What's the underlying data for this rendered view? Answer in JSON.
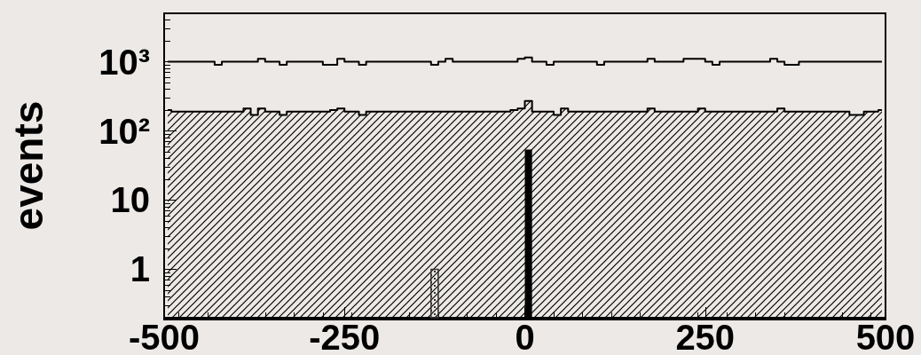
{
  "chart_data": {
    "type": "histogram",
    "ylabel": "events",
    "log": true,
    "grid": false,
    "xlim": [
      -500,
      500
    ],
    "xticks": [
      -500,
      -250,
      0,
      250,
      500
    ],
    "ylim": [
      0.2,
      5000
    ],
    "yticks": [
      1,
      10,
      {
        "value": 100,
        "label": "10²"
      },
      {
        "value": 1000,
        "label": "10³"
      }
    ],
    "series": [
      {
        "type": "step",
        "color": "#000000",
        "x": [
          -495,
          -485,
          -475,
          -465,
          -455,
          -445,
          -435,
          -425,
          -415,
          -405,
          -395,
          -385,
          -375,
          -365,
          -355,
          -345,
          -335,
          -325,
          -315,
          -305,
          -295,
          -285,
          -275,
          -265,
          -255,
          -245,
          -235,
          -225,
          -215,
          -205,
          -195,
          -185,
          -175,
          -165,
          -155,
          -145,
          -135,
          -125,
          -115,
          -105,
          -95,
          -85,
          -75,
          -65,
          -55,
          -45,
          -35,
          -25,
          -15,
          -5,
          5,
          15,
          25,
          35,
          45,
          55,
          65,
          75,
          85,
          95,
          105,
          115,
          125,
          135,
          145,
          155,
          165,
          175,
          185,
          195,
          205,
          215,
          225,
          235,
          245,
          255,
          265,
          275,
          285,
          295,
          305,
          315,
          325,
          335,
          345,
          355,
          365,
          375,
          385,
          395,
          405,
          415,
          425,
          435,
          445,
          455,
          465,
          475,
          485,
          495
        ],
        "values": [
          1000,
          1000,
          1000,
          1000,
          1000,
          1000,
          1000,
          900,
          1000,
          1000,
          1000,
          1000,
          1000,
          1100,
          1000,
          1000,
          900,
          1000,
          1000,
          1000,
          1000,
          1000,
          900,
          900,
          1100,
          1000,
          1000,
          900,
          1000,
          1000,
          1000,
          1000,
          1000,
          1000,
          1000,
          1000,
          1000,
          900,
          1000,
          1100,
          1000,
          1000,
          1000,
          1000,
          1000,
          1000,
          1000,
          1000,
          1000,
          1100,
          1150,
          1000,
          1000,
          900,
          1000,
          1000,
          1000,
          1000,
          1000,
          1000,
          900,
          1000,
          1000,
          1000,
          1000,
          1000,
          1000,
          1100,
          1000,
          1000,
          1000,
          1000,
          1100,
          1100,
          1100,
          1000,
          900,
          1000,
          1000,
          1000,
          1000,
          1000,
          1000,
          1000,
          1100,
          1000,
          900,
          900,
          1000,
          1000,
          1000,
          1000,
          1000,
          1000,
          1000,
          1000,
          1000,
          1000,
          1000,
          1000
        ]
      },
      {
        "type": "area",
        "color": "#000000",
        "x": [
          -495,
          -485,
          -475,
          -465,
          -455,
          -445,
          -435,
          -425,
          -415,
          -405,
          -395,
          -385,
          -375,
          -365,
          -355,
          -345,
          -335,
          -325,
          -315,
          -305,
          -295,
          -285,
          -275,
          -265,
          -255,
          -245,
          -235,
          -225,
          -215,
          -205,
          -195,
          -185,
          -175,
          -165,
          -155,
          -145,
          -135,
          -125,
          -115,
          -105,
          -95,
          -85,
          -75,
          -65,
          -55,
          -45,
          -35,
          -25,
          -15,
          -5,
          5,
          15,
          25,
          35,
          45,
          55,
          65,
          75,
          85,
          95,
          105,
          115,
          125,
          135,
          145,
          155,
          165,
          175,
          185,
          195,
          205,
          215,
          225,
          235,
          245,
          255,
          265,
          275,
          285,
          295,
          305,
          315,
          325,
          335,
          345,
          355,
          365,
          375,
          385,
          395,
          405,
          415,
          425,
          435,
          445,
          455,
          465,
          475,
          485,
          495
        ],
        "values": [
          200,
          190,
          190,
          190,
          190,
          190,
          190,
          190,
          190,
          190,
          190,
          210,
          170,
          210,
          190,
          190,
          170,
          190,
          190,
          190,
          190,
          190,
          190,
          200,
          210,
          190,
          190,
          170,
          190,
          190,
          190,
          190,
          190,
          190,
          190,
          190,
          190,
          190,
          190,
          190,
          190,
          190,
          190,
          190,
          190,
          190,
          190,
          190,
          200,
          210,
          270,
          190,
          190,
          190,
          170,
          210,
          190,
          190,
          190,
          190,
          190,
          190,
          190,
          190,
          190,
          190,
          190,
          210,
          190,
          190,
          190,
          190,
          190,
          190,
          210,
          190,
          190,
          190,
          190,
          190,
          190,
          190,
          190,
          190,
          190,
          210,
          190,
          190,
          190,
          190,
          190,
          190,
          190,
          190,
          190,
          170,
          170,
          190,
          190,
          200
        ]
      },
      {
        "color": "#000000",
        "bins": [
          0,
          10
        ],
        "values": [
          54
        ]
      },
      {
        "color": "#333333",
        "bins": [
          -130,
          -120
        ],
        "values": [
          1
        ]
      }
    ]
  }
}
